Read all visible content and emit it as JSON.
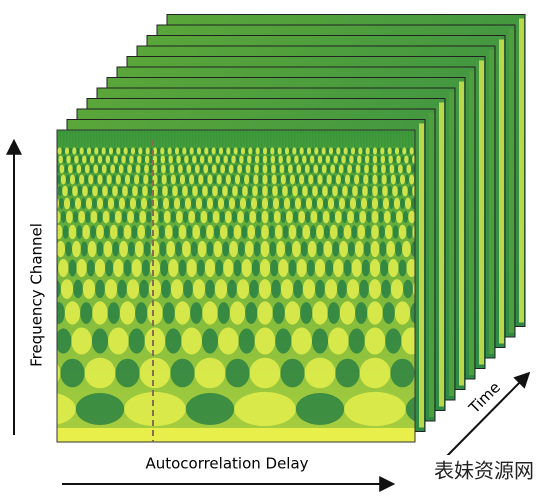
{
  "y_axis_label": "Frequency Channel",
  "x_axis_label": "Autocorrelation Delay",
  "z_axis_label": "Time",
  "watermark": "表妹资源网"
}
